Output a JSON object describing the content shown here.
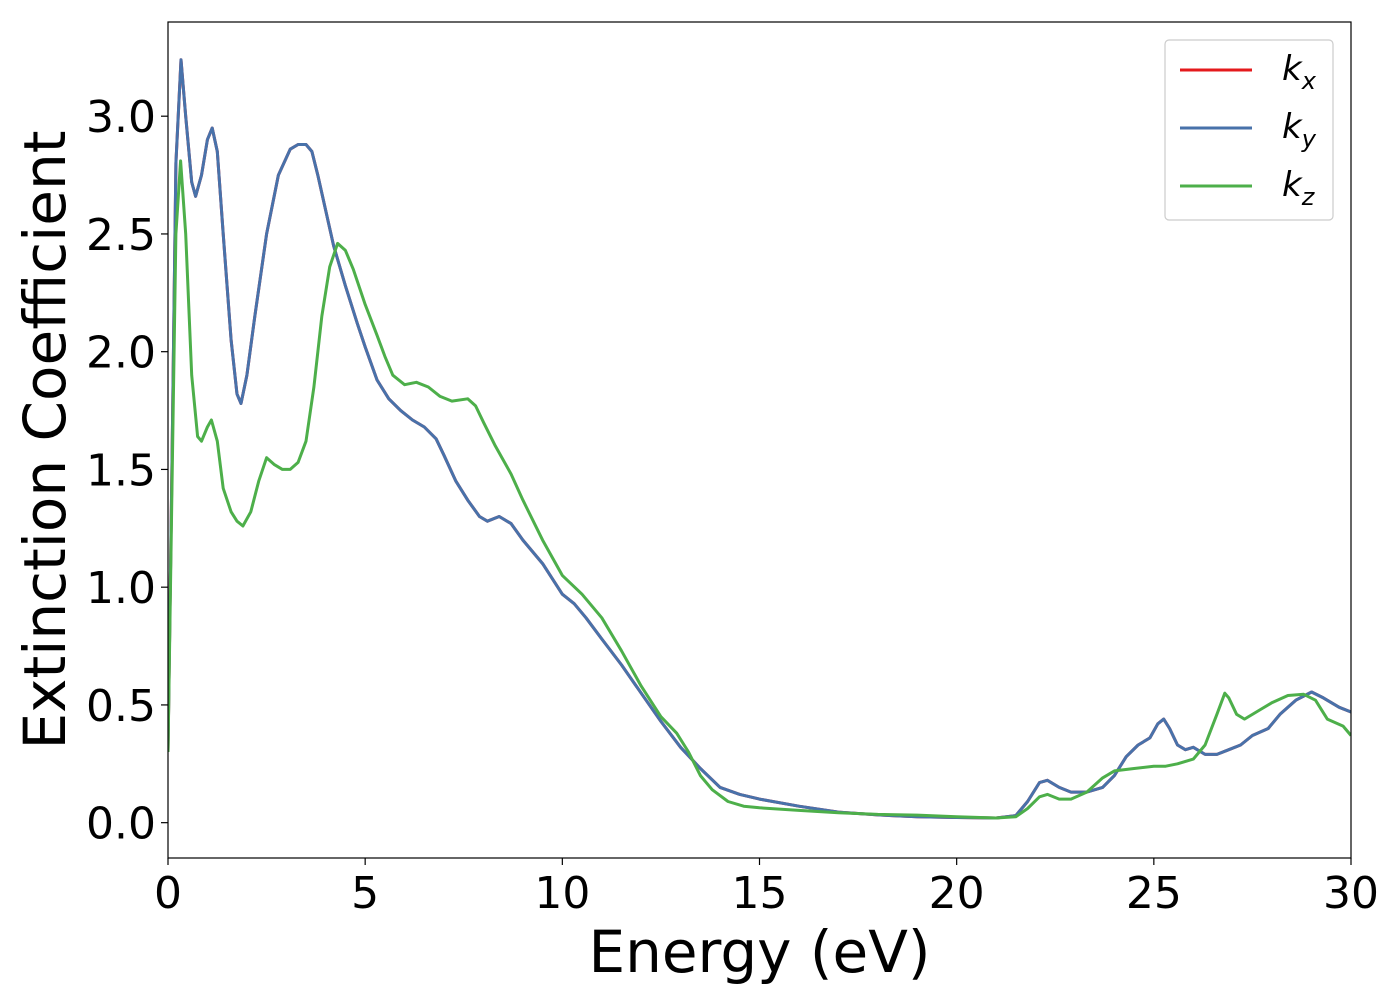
{
  "chart_data": {
    "type": "line",
    "title": "",
    "xlabel": "Energy (eV)",
    "ylabel": "Extinction Coefficient",
    "xlim": [
      0,
      30
    ],
    "ylim": [
      -0.15,
      3.4
    ],
    "xticks": [
      0,
      5,
      10,
      15,
      20,
      25,
      30
    ],
    "yticks": [
      0.0,
      0.5,
      1.0,
      1.5,
      2.0,
      2.5,
      3.0
    ],
    "xtick_labels": [
      "0",
      "5",
      "10",
      "15",
      "20",
      "25",
      "30"
    ],
    "ytick_labels": [
      "0.0",
      "0.5",
      "1.0",
      "1.5",
      "2.0",
      "2.5",
      "3.0"
    ],
    "grid": false,
    "legend_position": "top-right",
    "series": [
      {
        "name": "k_x",
        "legend_base": "k",
        "legend_sub": "x",
        "color": "#e41a1c",
        "points": [
          [
            0,
            0.3
          ],
          [
            0.1,
            1.5
          ],
          [
            0.2,
            2.8
          ],
          [
            0.33,
            3.24
          ],
          [
            0.45,
            3.0
          ],
          [
            0.6,
            2.72
          ],
          [
            0.7,
            2.66
          ],
          [
            0.85,
            2.75
          ],
          [
            1.0,
            2.9
          ],
          [
            1.12,
            2.95
          ],
          [
            1.25,
            2.85
          ],
          [
            1.4,
            2.5
          ],
          [
            1.6,
            2.05
          ],
          [
            1.75,
            1.82
          ],
          [
            1.85,
            1.78
          ],
          [
            2.0,
            1.9
          ],
          [
            2.2,
            2.15
          ],
          [
            2.5,
            2.5
          ],
          [
            2.8,
            2.75
          ],
          [
            3.1,
            2.86
          ],
          [
            3.3,
            2.88
          ],
          [
            3.5,
            2.88
          ],
          [
            3.65,
            2.85
          ],
          [
            3.8,
            2.75
          ],
          [
            4.0,
            2.6
          ],
          [
            4.2,
            2.45
          ],
          [
            4.5,
            2.28
          ],
          [
            4.8,
            2.12
          ],
          [
            5.0,
            2.02
          ],
          [
            5.3,
            1.88
          ],
          [
            5.6,
            1.8
          ],
          [
            5.9,
            1.75
          ],
          [
            6.2,
            1.71
          ],
          [
            6.5,
            1.68
          ],
          [
            6.8,
            1.63
          ],
          [
            7.0,
            1.56
          ],
          [
            7.3,
            1.45
          ],
          [
            7.6,
            1.37
          ],
          [
            7.9,
            1.3
          ],
          [
            8.1,
            1.28
          ],
          [
            8.4,
            1.3
          ],
          [
            8.7,
            1.27
          ],
          [
            9.0,
            1.2
          ],
          [
            9.5,
            1.1
          ],
          [
            10.0,
            0.97
          ],
          [
            10.3,
            0.93
          ],
          [
            10.6,
            0.87
          ],
          [
            11.0,
            0.78
          ],
          [
            11.5,
            0.67
          ],
          [
            12.0,
            0.55
          ],
          [
            12.5,
            0.43
          ],
          [
            13.0,
            0.32
          ],
          [
            13.5,
            0.23
          ],
          [
            14.0,
            0.15
          ],
          [
            14.5,
            0.12
          ],
          [
            15.0,
            0.1
          ],
          [
            16.0,
            0.07
          ],
          [
            17.0,
            0.045
          ],
          [
            18.0,
            0.033
          ],
          [
            19.0,
            0.025
          ],
          [
            20.0,
            0.022
          ],
          [
            21.0,
            0.02
          ],
          [
            21.5,
            0.03
          ],
          [
            21.8,
            0.09
          ],
          [
            22.1,
            0.17
          ],
          [
            22.3,
            0.18
          ],
          [
            22.6,
            0.15
          ],
          [
            22.9,
            0.13
          ],
          [
            23.3,
            0.13
          ],
          [
            23.7,
            0.15
          ],
          [
            24.0,
            0.2
          ],
          [
            24.3,
            0.28
          ],
          [
            24.6,
            0.33
          ],
          [
            24.9,
            0.36
          ],
          [
            25.1,
            0.42
          ],
          [
            25.25,
            0.44
          ],
          [
            25.4,
            0.4
          ],
          [
            25.6,
            0.33
          ],
          [
            25.8,
            0.31
          ],
          [
            26.0,
            0.32
          ],
          [
            26.3,
            0.29
          ],
          [
            26.6,
            0.29
          ],
          [
            26.9,
            0.31
          ],
          [
            27.2,
            0.33
          ],
          [
            27.5,
            0.37
          ],
          [
            27.9,
            0.4
          ],
          [
            28.2,
            0.46
          ],
          [
            28.6,
            0.52
          ],
          [
            29.0,
            0.555
          ],
          [
            29.3,
            0.53
          ],
          [
            29.7,
            0.49
          ],
          [
            30.0,
            0.47
          ]
        ]
      },
      {
        "name": "k_y",
        "legend_base": "k",
        "legend_sub": "y",
        "color": "#4872aa",
        "points": [
          [
            0,
            0.3
          ],
          [
            0.1,
            1.5
          ],
          [
            0.2,
            2.8
          ],
          [
            0.33,
            3.24
          ],
          [
            0.45,
            3.0
          ],
          [
            0.6,
            2.72
          ],
          [
            0.7,
            2.66
          ],
          [
            0.85,
            2.75
          ],
          [
            1.0,
            2.9
          ],
          [
            1.12,
            2.95
          ],
          [
            1.25,
            2.85
          ],
          [
            1.4,
            2.5
          ],
          [
            1.6,
            2.05
          ],
          [
            1.75,
            1.82
          ],
          [
            1.85,
            1.78
          ],
          [
            2.0,
            1.9
          ],
          [
            2.2,
            2.15
          ],
          [
            2.5,
            2.5
          ],
          [
            2.8,
            2.75
          ],
          [
            3.1,
            2.86
          ],
          [
            3.3,
            2.88
          ],
          [
            3.5,
            2.88
          ],
          [
            3.65,
            2.85
          ],
          [
            3.8,
            2.75
          ],
          [
            4.0,
            2.6
          ],
          [
            4.2,
            2.45
          ],
          [
            4.5,
            2.28
          ],
          [
            4.8,
            2.12
          ],
          [
            5.0,
            2.02
          ],
          [
            5.3,
            1.88
          ],
          [
            5.6,
            1.8
          ],
          [
            5.9,
            1.75
          ],
          [
            6.2,
            1.71
          ],
          [
            6.5,
            1.68
          ],
          [
            6.8,
            1.63
          ],
          [
            7.0,
            1.56
          ],
          [
            7.3,
            1.45
          ],
          [
            7.6,
            1.37
          ],
          [
            7.9,
            1.3
          ],
          [
            8.1,
            1.28
          ],
          [
            8.4,
            1.3
          ],
          [
            8.7,
            1.27
          ],
          [
            9.0,
            1.2
          ],
          [
            9.5,
            1.1
          ],
          [
            10.0,
            0.97
          ],
          [
            10.3,
            0.93
          ],
          [
            10.6,
            0.87
          ],
          [
            11.0,
            0.78
          ],
          [
            11.5,
            0.67
          ],
          [
            12.0,
            0.55
          ],
          [
            12.5,
            0.43
          ],
          [
            13.0,
            0.32
          ],
          [
            13.5,
            0.23
          ],
          [
            14.0,
            0.15
          ],
          [
            14.5,
            0.12
          ],
          [
            15.0,
            0.1
          ],
          [
            16.0,
            0.07
          ],
          [
            17.0,
            0.045
          ],
          [
            18.0,
            0.033
          ],
          [
            19.0,
            0.025
          ],
          [
            20.0,
            0.022
          ],
          [
            21.0,
            0.02
          ],
          [
            21.5,
            0.03
          ],
          [
            21.8,
            0.09
          ],
          [
            22.1,
            0.17
          ],
          [
            22.3,
            0.18
          ],
          [
            22.6,
            0.15
          ],
          [
            22.9,
            0.13
          ],
          [
            23.3,
            0.13
          ],
          [
            23.7,
            0.15
          ],
          [
            24.0,
            0.2
          ],
          [
            24.3,
            0.28
          ],
          [
            24.6,
            0.33
          ],
          [
            24.9,
            0.36
          ],
          [
            25.1,
            0.42
          ],
          [
            25.25,
            0.44
          ],
          [
            25.4,
            0.4
          ],
          [
            25.6,
            0.33
          ],
          [
            25.8,
            0.31
          ],
          [
            26.0,
            0.32
          ],
          [
            26.3,
            0.29
          ],
          [
            26.6,
            0.29
          ],
          [
            26.9,
            0.31
          ],
          [
            27.2,
            0.33
          ],
          [
            27.5,
            0.37
          ],
          [
            27.9,
            0.4
          ],
          [
            28.2,
            0.46
          ],
          [
            28.6,
            0.52
          ],
          [
            29.0,
            0.555
          ],
          [
            29.3,
            0.53
          ],
          [
            29.7,
            0.49
          ],
          [
            30.0,
            0.47
          ]
        ]
      },
      {
        "name": "k_z",
        "legend_base": "k",
        "legend_sub": "z",
        "color": "#4daf4a",
        "points": [
          [
            0,
            0.3
          ],
          [
            0.1,
            1.4
          ],
          [
            0.2,
            2.5
          ],
          [
            0.32,
            2.81
          ],
          [
            0.45,
            2.5
          ],
          [
            0.6,
            1.9
          ],
          [
            0.75,
            1.64
          ],
          [
            0.85,
            1.62
          ],
          [
            1.0,
            1.68
          ],
          [
            1.1,
            1.71
          ],
          [
            1.25,
            1.62
          ],
          [
            1.4,
            1.42
          ],
          [
            1.6,
            1.32
          ],
          [
            1.75,
            1.28
          ],
          [
            1.9,
            1.26
          ],
          [
            2.1,
            1.32
          ],
          [
            2.3,
            1.45
          ],
          [
            2.5,
            1.55
          ],
          [
            2.7,
            1.52
          ],
          [
            2.9,
            1.5
          ],
          [
            3.1,
            1.5
          ],
          [
            3.3,
            1.53
          ],
          [
            3.5,
            1.62
          ],
          [
            3.7,
            1.85
          ],
          [
            3.9,
            2.15
          ],
          [
            4.1,
            2.36
          ],
          [
            4.3,
            2.46
          ],
          [
            4.5,
            2.43
          ],
          [
            4.7,
            2.35
          ],
          [
            5.0,
            2.2
          ],
          [
            5.3,
            2.07
          ],
          [
            5.5,
            1.98
          ],
          [
            5.7,
            1.9
          ],
          [
            6.0,
            1.86
          ],
          [
            6.3,
            1.87
          ],
          [
            6.6,
            1.85
          ],
          [
            6.9,
            1.81
          ],
          [
            7.2,
            1.79
          ],
          [
            7.6,
            1.8
          ],
          [
            7.8,
            1.77
          ],
          [
            8.0,
            1.7
          ],
          [
            8.3,
            1.6
          ],
          [
            8.7,
            1.48
          ],
          [
            9.0,
            1.37
          ],
          [
            9.5,
            1.2
          ],
          [
            10.0,
            1.05
          ],
          [
            10.5,
            0.97
          ],
          [
            11.0,
            0.87
          ],
          [
            11.5,
            0.73
          ],
          [
            12.0,
            0.58
          ],
          [
            12.5,
            0.45
          ],
          [
            12.9,
            0.38
          ],
          [
            13.2,
            0.3
          ],
          [
            13.5,
            0.2
          ],
          [
            13.8,
            0.14
          ],
          [
            14.2,
            0.09
          ],
          [
            14.6,
            0.07
          ],
          [
            15.0,
            0.063
          ],
          [
            16.0,
            0.052
          ],
          [
            17.0,
            0.042
          ],
          [
            18.0,
            0.035
          ],
          [
            19.0,
            0.032
          ],
          [
            20.0,
            0.025
          ],
          [
            21.0,
            0.02
          ],
          [
            21.5,
            0.025
          ],
          [
            21.8,
            0.06
          ],
          [
            22.1,
            0.11
          ],
          [
            22.3,
            0.12
          ],
          [
            22.6,
            0.1
          ],
          [
            22.9,
            0.1
          ],
          [
            23.3,
            0.13
          ],
          [
            23.7,
            0.19
          ],
          [
            24.0,
            0.22
          ],
          [
            24.5,
            0.23
          ],
          [
            25.0,
            0.24
          ],
          [
            25.3,
            0.24
          ],
          [
            25.6,
            0.25
          ],
          [
            26.0,
            0.27
          ],
          [
            26.3,
            0.33
          ],
          [
            26.6,
            0.46
          ],
          [
            26.8,
            0.55
          ],
          [
            26.9,
            0.53
          ],
          [
            27.1,
            0.46
          ],
          [
            27.3,
            0.44
          ],
          [
            27.7,
            0.48
          ],
          [
            28.0,
            0.51
          ],
          [
            28.4,
            0.54
          ],
          [
            28.8,
            0.545
          ],
          [
            29.1,
            0.52
          ],
          [
            29.4,
            0.44
          ],
          [
            29.8,
            0.41
          ],
          [
            30.0,
            0.37
          ]
        ]
      }
    ]
  }
}
